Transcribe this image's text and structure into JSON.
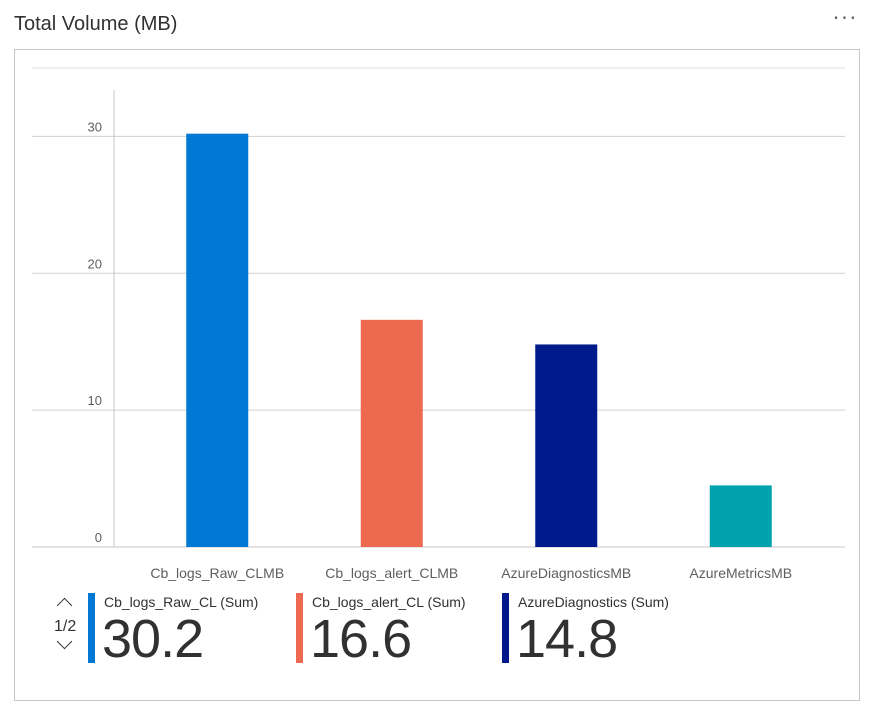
{
  "panel": {
    "title": "Total Volume (MB)",
    "more_icon_glyph": "···"
  },
  "chart_data": {
    "type": "bar",
    "title": "Total Volume (MB)",
    "categories": [
      "Cb_logs_Raw_CLMB",
      "Cb_logs_alert_CLMB",
      "AzureDiagnosticsMB",
      "AzureMetricsMB"
    ],
    "values": [
      30.2,
      16.6,
      14.8,
      4.5
    ],
    "colors": [
      "#0078d4",
      "#ed6a50",
      "#001a8c",
      "#00a2ad"
    ],
    "ylim": [
      0,
      35
    ],
    "yticks": [
      0,
      10,
      20,
      30
    ],
    "grid": true,
    "xlabel": "",
    "ylabel": ""
  },
  "legend": {
    "pager": {
      "page_text": "1/2",
      "up_icon": "chevron-up-icon",
      "down_icon": "chevron-down-icon"
    },
    "items": [
      {
        "name": "Cb_logs_Raw_CL (Sum)",
        "value": "30.2",
        "color": "#0078d4"
      },
      {
        "name": "Cb_logs_alert_CL (Sum)",
        "value": "16.6",
        "color": "#ed6a50"
      },
      {
        "name": "AzureDiagnostics (Sum)",
        "value": "14.8",
        "color": "#001a8c"
      }
    ]
  }
}
